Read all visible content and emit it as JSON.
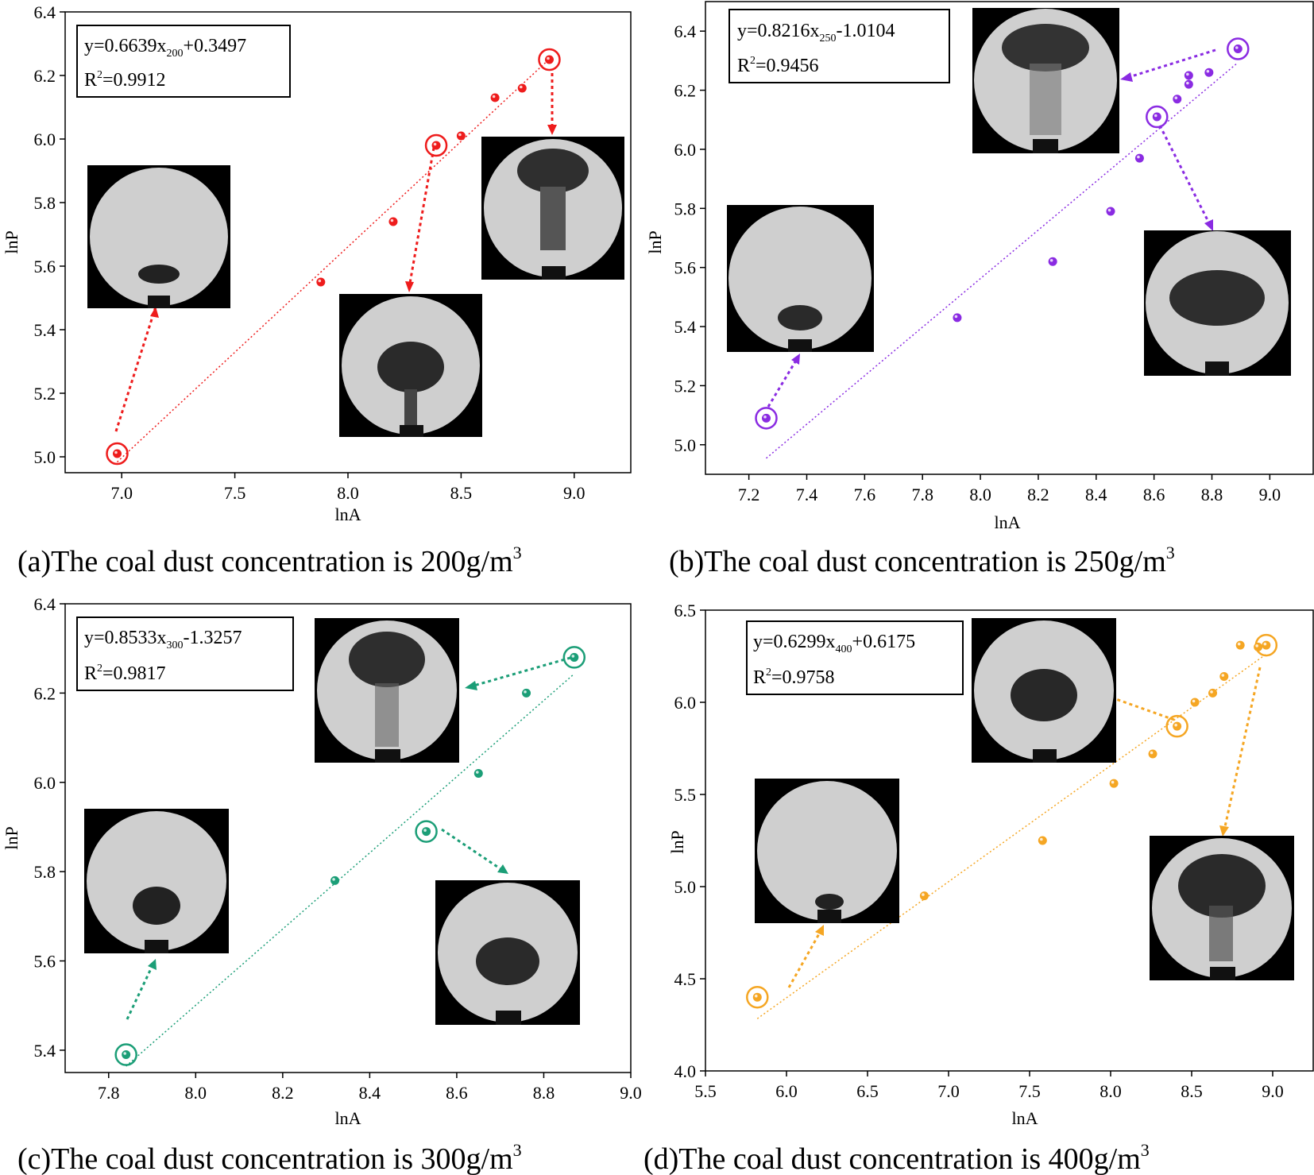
{
  "figure": {
    "panels": [
      {
        "caption_main": "(a)The coal dust concentration is 200g/m",
        "caption_sup": "3",
        "equation": {
          "pre": "y=0.6639x",
          "sub": "200",
          "post": "+0.3497"
        },
        "r2": {
          "pre": "R",
          "sup": "2",
          "post": "=0.9912"
        }
      },
      {
        "caption_main": "(b)The coal dust concentration is 250g/m",
        "caption_sup": "3",
        "equation": {
          "pre": "y=0.8216x",
          "sub": "250",
          "post": "-1.0104"
        },
        "r2": {
          "pre": "R",
          "sup": "2",
          "post": "=0.9456"
        }
      },
      {
        "caption_main": "(c)The coal dust concentration is 300g/m",
        "caption_sup": "3",
        "equation": {
          "pre": "y=0.8533x",
          "sub": "300",
          "post": "-1.3257"
        },
        "r2": {
          "pre": "R",
          "sup": "2",
          "post": "=0.9817"
        }
      },
      {
        "caption_main": "(d)The coal dust concentration is 400g/m",
        "caption_sup": "3",
        "equation": {
          "pre": "y=0.6299x",
          "sub": "400",
          "post": "+0.6175"
        },
        "r2": {
          "pre": "R",
          "sup": "2",
          "post": "=0.9758"
        }
      }
    ]
  },
  "chart_data": [
    {
      "type": "scatter",
      "title": "",
      "xlabel": "lnA",
      "ylabel": "lnP",
      "color": "#ee1c1c",
      "xlim": [
        6.75,
        9.25
      ],
      "ylim": [
        4.95,
        6.4
      ],
      "xticks": [
        "7.0",
        "7.5",
        "8.0",
        "8.5",
        "9.0"
      ],
      "yticks": [
        "5.0",
        "5.2",
        "5.4",
        "5.6",
        "5.8",
        "6.0",
        "6.2",
        "6.4"
      ],
      "x": [
        6.98,
        7.88,
        8.2,
        8.39,
        8.5,
        8.65,
        8.77,
        8.89
      ],
      "y": [
        5.01,
        5.55,
        5.74,
        5.98,
        6.01,
        6.13,
        6.16,
        6.25
      ],
      "highlighted": [
        [
          6.98,
          5.01
        ],
        [
          8.39,
          5.98
        ],
        [
          8.89,
          6.25
        ]
      ],
      "fit": {
        "slope": 0.6639,
        "intercept": 0.3497,
        "x_range": [
          6.98,
          8.89
        ]
      }
    },
    {
      "type": "scatter",
      "title": "",
      "xlabel": "lnA",
      "ylabel": "lnP",
      "color": "#8a2be2",
      "xlim": [
        7.05,
        9.15
      ],
      "ylim": [
        4.9,
        6.5
      ],
      "xticks": [
        "7.2",
        "7.4",
        "7.6",
        "7.8",
        "8.0",
        "8.2",
        "8.4",
        "8.6",
        "8.8",
        "9.0"
      ],
      "yticks": [
        "5.0",
        "5.2",
        "5.4",
        "5.6",
        "5.8",
        "6.0",
        "6.2",
        "6.4"
      ],
      "x": [
        7.26,
        7.92,
        8.25,
        8.45,
        8.55,
        8.61,
        8.68,
        8.72,
        8.72,
        8.79,
        8.89
      ],
      "y": [
        5.09,
        5.43,
        5.62,
        5.79,
        5.97,
        6.11,
        6.17,
        6.22,
        6.25,
        6.26,
        6.34
      ],
      "highlighted": [
        [
          7.26,
          5.09
        ],
        [
          8.61,
          6.11
        ],
        [
          8.89,
          6.34
        ]
      ],
      "fit": {
        "slope": 0.8216,
        "intercept": -1.0104,
        "x_range": [
          7.26,
          8.89
        ]
      }
    },
    {
      "type": "scatter",
      "title": "",
      "xlabel": "lnA",
      "ylabel": "lnP",
      "color": "#1b9e77",
      "xlim": [
        7.7,
        9.0
      ],
      "ylim": [
        5.35,
        6.4
      ],
      "xticks": [
        "7.8",
        "8.0",
        "8.2",
        "8.4",
        "8.6",
        "8.8",
        "9.0"
      ],
      "yticks": [
        "5.4",
        "5.6",
        "5.8",
        "6.0",
        "6.2",
        "6.4"
      ],
      "x": [
        7.84,
        8.32,
        8.53,
        8.65,
        8.76,
        8.87
      ],
      "y": [
        5.39,
        5.78,
        5.89,
        6.02,
        6.2,
        6.28
      ],
      "highlighted": [
        [
          7.84,
          5.39
        ],
        [
          8.53,
          5.89
        ],
        [
          8.87,
          6.28
        ]
      ],
      "fit": {
        "slope": 0.8533,
        "intercept": -1.3257,
        "x_range": [
          7.84,
          8.87
        ]
      }
    },
    {
      "type": "scatter",
      "title": "",
      "xlabel": "lnA",
      "ylabel": "lnP",
      "color": "#f5a623",
      "xlim": [
        5.5,
        9.25
      ],
      "ylim": [
        4.0,
        6.5
      ],
      "xticks": [
        "5.5",
        "6.0",
        "6.5",
        "7.0",
        "7.5",
        "8.0",
        "8.5",
        "9.0"
      ],
      "yticks": [
        "4.0",
        "4.5",
        "5.0",
        "5.5",
        "6.0",
        "6.5"
      ],
      "x": [
        5.82,
        6.85,
        7.58,
        8.02,
        8.26,
        8.41,
        8.52,
        8.63,
        8.7,
        8.8,
        8.91,
        8.96
      ],
      "y": [
        4.4,
        4.95,
        5.25,
        5.56,
        5.72,
        5.87,
        6.0,
        6.05,
        6.14,
        6.31,
        6.3,
        6.31
      ],
      "highlighted": [
        [
          5.82,
          4.4
        ],
        [
          8.41,
          5.87
        ],
        [
          8.96,
          6.31
        ]
      ],
      "fit": {
        "slope": 0.6299,
        "intercept": 0.6175,
        "x_range": [
          5.82,
          8.96
        ]
      }
    }
  ]
}
